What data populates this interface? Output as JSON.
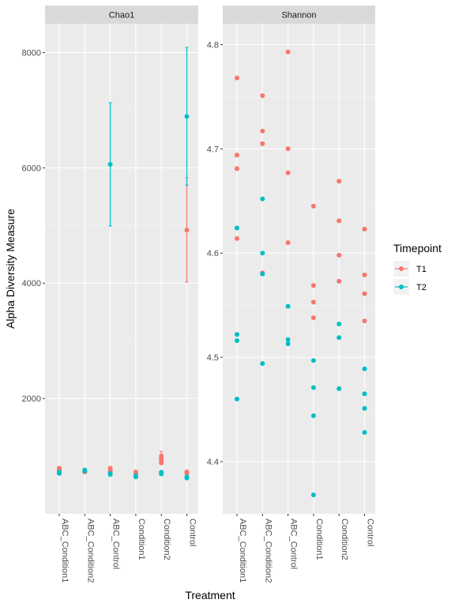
{
  "chart_data": {
    "type": "scatter",
    "ylabel": "Alpha Diversity Measure",
    "xlabel": "Treatment",
    "categories": [
      "ABC_Condition1",
      "ABC_Condition2",
      "ABC_Control",
      "Condition1",
      "Condition2",
      "Control"
    ],
    "legend": {
      "title": "Timepoint",
      "position": "right",
      "entries": [
        {
          "name": "T1",
          "color": "#F8766D"
        },
        {
          "name": "T2",
          "color": "#00BFC4"
        }
      ]
    },
    "grid": true,
    "panels": [
      {
        "title": "Chao1",
        "ylim": [
          0,
          8500
        ],
        "yticks": [
          2000,
          4000,
          6000,
          8000
        ],
        "ytick_labels": [
          "2000",
          "4000",
          "6000",
          "8000"
        ],
        "series": [
          {
            "name": "T1",
            "color": "#F8766D",
            "points": [
              {
                "x": "ABC_Condition1",
                "y": 790
              },
              {
                "x": "ABC_Condition1",
                "y": 770
              },
              {
                "x": "ABC_Condition1",
                "y": 745
              },
              {
                "x": "ABC_Condition2",
                "y": 745
              },
              {
                "x": "ABC_Condition2",
                "y": 725
              },
              {
                "x": "ABC_Control",
                "y": 790
              },
              {
                "x": "ABC_Control",
                "y": 760
              },
              {
                "x": "ABC_Control",
                "y": 730
              },
              {
                "x": "Condition1",
                "y": 725
              },
              {
                "x": "Condition1",
                "y": 700
              },
              {
                "x": "Condition2",
                "y": 1000
              },
              {
                "x": "Condition2",
                "y": 960
              },
              {
                "x": "Condition2",
                "y": 930
              },
              {
                "x": "Condition2",
                "y": 880
              },
              {
                "x": "Control",
                "y": 4920
              },
              {
                "x": "Control",
                "y": 725
              },
              {
                "x": "Control",
                "y": 700
              }
            ],
            "error_bars": [
              {
                "x": "Condition2",
                "low": 860,
                "high": 1080
              },
              {
                "x": "Control",
                "low": 4020,
                "high": 5830
              }
            ]
          },
          {
            "name": "T2",
            "color": "#00BFC4",
            "points": [
              {
                "x": "ABC_Condition1",
                "y": 720
              },
              {
                "x": "ABC_Condition1",
                "y": 700
              },
              {
                "x": "ABC_Condition2",
                "y": 760
              },
              {
                "x": "ABC_Condition2",
                "y": 740
              },
              {
                "x": "ABC_Control",
                "y": 6060
              },
              {
                "x": "ABC_Control",
                "y": 700
              },
              {
                "x": "ABC_Control",
                "y": 680
              },
              {
                "x": "Condition1",
                "y": 660
              },
              {
                "x": "Condition1",
                "y": 640
              },
              {
                "x": "Condition2",
                "y": 720
              },
              {
                "x": "Condition2",
                "y": 690
              },
              {
                "x": "Control",
                "y": 6890
              },
              {
                "x": "Control",
                "y": 640
              },
              {
                "x": "Control",
                "y": 620
              }
            ],
            "error_bars": [
              {
                "x": "ABC_Control",
                "low": 4990,
                "high": 7130
              },
              {
                "x": "Control",
                "low": 5700,
                "high": 8090
              }
            ]
          }
        ]
      },
      {
        "title": "Shannon",
        "ylim": [
          4.35,
          4.82
        ],
        "yticks": [
          4.4,
          4.5,
          4.6,
          4.7,
          4.8
        ],
        "ytick_labels": [
          "4.4",
          "4.5",
          "4.6",
          "4.7",
          "4.8"
        ],
        "series": [
          {
            "name": "T1",
            "color": "#F8766D",
            "points": [
              {
                "x": "ABC_Condition1",
                "y": 4.768
              },
              {
                "x": "ABC_Condition1",
                "y": 4.694
              },
              {
                "x": "ABC_Condition1",
                "y": 4.681
              },
              {
                "x": "ABC_Condition1",
                "y": 4.614
              },
              {
                "x": "ABC_Condition2",
                "y": 4.751
              },
              {
                "x": "ABC_Condition2",
                "y": 4.717
              },
              {
                "x": "ABC_Condition2",
                "y": 4.705
              },
              {
                "x": "ABC_Condition2",
                "y": 4.581
              },
              {
                "x": "ABC_Control",
                "y": 4.793
              },
              {
                "x": "ABC_Control",
                "y": 4.7
              },
              {
                "x": "ABC_Control",
                "y": 4.677
              },
              {
                "x": "ABC_Control",
                "y": 4.61
              },
              {
                "x": "Condition1",
                "y": 4.645
              },
              {
                "x": "Condition1",
                "y": 4.569
              },
              {
                "x": "Condition1",
                "y": 4.553
              },
              {
                "x": "Condition1",
                "y": 4.538
              },
              {
                "x": "Condition2",
                "y": 4.669
              },
              {
                "x": "Condition2",
                "y": 4.631
              },
              {
                "x": "Condition2",
                "y": 4.598
              },
              {
                "x": "Condition2",
                "y": 4.573
              },
              {
                "x": "Control",
                "y": 4.623
              },
              {
                "x": "Control",
                "y": 4.579
              },
              {
                "x": "Control",
                "y": 4.561
              },
              {
                "x": "Control",
                "y": 4.535
              }
            ]
          },
          {
            "name": "T2",
            "color": "#00BFC4",
            "points": [
              {
                "x": "ABC_Condition1",
                "y": 4.624
              },
              {
                "x": "ABC_Condition1",
                "y": 4.522
              },
              {
                "x": "ABC_Condition1",
                "y": 4.516
              },
              {
                "x": "ABC_Condition1",
                "y": 4.46
              },
              {
                "x": "ABC_Condition2",
                "y": 4.652
              },
              {
                "x": "ABC_Condition2",
                "y": 4.6
              },
              {
                "x": "ABC_Condition2",
                "y": 4.58
              },
              {
                "x": "ABC_Condition2",
                "y": 4.494
              },
              {
                "x": "ABC_Control",
                "y": 4.549
              },
              {
                "x": "ABC_Control",
                "y": 4.517
              },
              {
                "x": "ABC_Control",
                "y": 4.513
              },
              {
                "x": "Condition1",
                "y": 4.497
              },
              {
                "x": "Condition1",
                "y": 4.471
              },
              {
                "x": "Condition1",
                "y": 4.444
              },
              {
                "x": "Condition1",
                "y": 4.368
              },
              {
                "x": "Condition2",
                "y": 4.532
              },
              {
                "x": "Condition2",
                "y": 4.519
              },
              {
                "x": "Condition2",
                "y": 4.47
              },
              {
                "x": "Control",
                "y": 4.489
              },
              {
                "x": "Control",
                "y": 4.465
              },
              {
                "x": "Control",
                "y": 4.451
              },
              {
                "x": "Control",
                "y": 4.428
              }
            ]
          }
        ]
      }
    ]
  }
}
